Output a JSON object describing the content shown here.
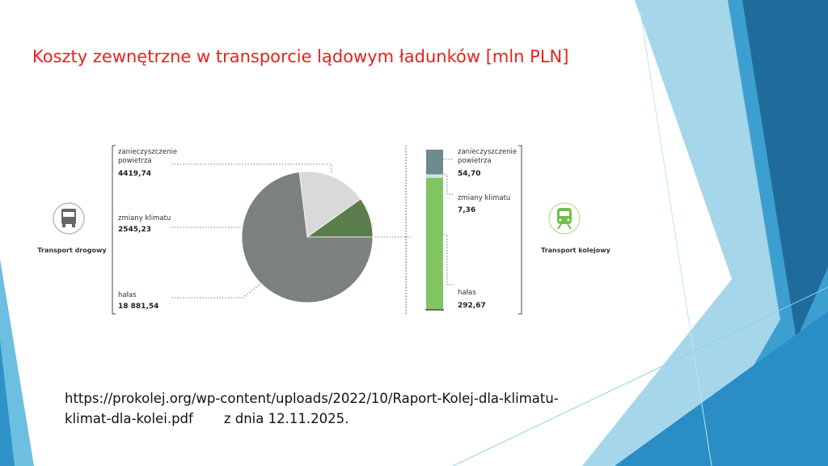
{
  "title": "Koszty zewnętrzne w transporcie lądowym ładunków [mln PLN]",
  "chart_data": [
    {
      "type": "pie",
      "title": "Transport drogowy",
      "categories": [
        "zanieczyszczenie powietrza",
        "zmiany klimatu",
        "hałas"
      ],
      "values": [
        4419.74,
        2545.23,
        18881.54
      ],
      "value_labels": [
        "4419,74",
        "2545,23",
        "18 881,54"
      ],
      "colors": [
        "#d9d9d9",
        "#5a7d4c",
        "#7b8081"
      ]
    },
    {
      "type": "bar",
      "stacked": true,
      "title": "Transport kolejowy",
      "series": [
        {
          "name": "zanieczyszczenie powietrza",
          "color": "#6f8a8c",
          "values": [
            54.7
          ],
          "value_labels": [
            "54,70"
          ]
        },
        {
          "name": "zmiany klimatu",
          "color": "#cfe8e2",
          "values": [
            7.36
          ],
          "value_labels": [
            "7,36"
          ]
        },
        {
          "name": "hałas",
          "color": "#80c463",
          "values": [
            292.67
          ],
          "value_labels": [
            "292,67"
          ]
        }
      ]
    }
  ],
  "source": {
    "url": "https://prokolej.org/wp-content/uploads/2022/10/Raport-Kolej-dla-klimatu-klimat-dla-kolei.pdf",
    "date": "z dnia 12.11.2025."
  }
}
